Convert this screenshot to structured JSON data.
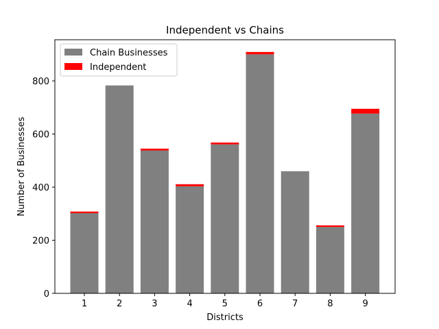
{
  "chart_data": {
    "type": "bar",
    "stacked": true,
    "title": "Independent vs Chains",
    "xlabel": "Districts",
    "ylabel": "Number of Businesses",
    "categories": [
      "1",
      "2",
      "3",
      "4",
      "5",
      "6",
      "7",
      "8",
      "9"
    ],
    "series": [
      {
        "name": "Chain Businesses",
        "color": "#808080",
        "values": [
          302,
          783,
          538,
          403,
          561,
          900,
          460,
          250,
          677
        ]
      },
      {
        "name": "Independent",
        "color": "#ff0000",
        "values": [
          6,
          0,
          7,
          8,
          7,
          9,
          0,
          6,
          18
        ]
      }
    ],
    "ylim": [
      0,
      955
    ],
    "yticks": [
      0,
      200,
      400,
      600,
      800
    ],
    "grid": false,
    "legend_position": "top-left"
  }
}
